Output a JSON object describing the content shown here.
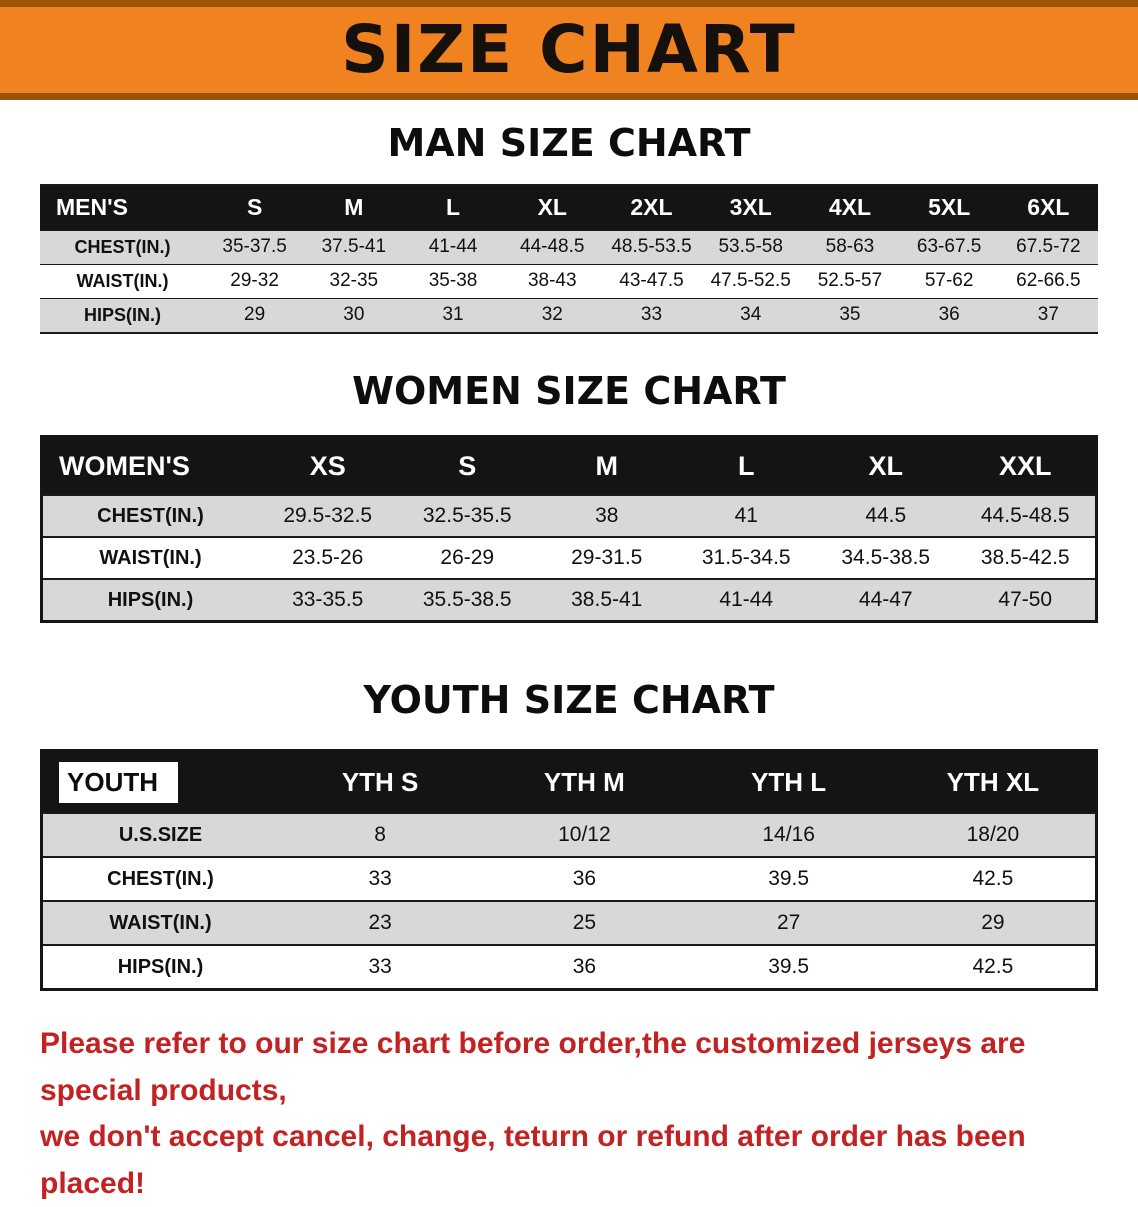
{
  "banner": {
    "title": "SIZE CHART",
    "bg_color": "#f0831f",
    "border_color": "#9c5308"
  },
  "sections": [
    {
      "heading": "MAN SIZE CHART",
      "table": {
        "label": "MEN'S",
        "columns": [
          "S",
          "M",
          "L",
          "XL",
          "2XL",
          "3XL",
          "4XL",
          "5XL",
          "6XL"
        ],
        "rows": [
          {
            "label": "CHEST(IN.)",
            "values": [
              "35-37.5",
              "37.5-41",
              "41-44",
              "44-48.5",
              "48.5-53.5",
              "53.5-58",
              "58-63",
              "63-67.5",
              "67.5-72"
            ]
          },
          {
            "label": "WAIST(IN.)",
            "values": [
              "29-32",
              "32-35",
              "35-38",
              "38-43",
              "43-47.5",
              "47.5-52.5",
              "52.5-57",
              "57-62",
              "62-66.5"
            ]
          },
          {
            "label": "HIPS(IN.)",
            "values": [
              "29",
              "30",
              "31",
              "32",
              "33",
              "34",
              "35",
              "36",
              "37"
            ]
          }
        ]
      }
    },
    {
      "heading": "WOMEN SIZE CHART",
      "table": {
        "label": "WOMEN'S",
        "columns": [
          "XS",
          "S",
          "M",
          "L",
          "XL",
          "XXL"
        ],
        "rows": [
          {
            "label": "CHEST(IN.)",
            "values": [
              "29.5-32.5",
              "32.5-35.5",
              "38",
              "41",
              "44.5",
              "44.5-48.5"
            ]
          },
          {
            "label": "WAIST(IN.)",
            "values": [
              "23.5-26",
              "26-29",
              "29-31.5",
              "31.5-34.5",
              "34.5-38.5",
              "38.5-42.5"
            ]
          },
          {
            "label": "HIPS(IN.)",
            "values": [
              "33-35.5",
              "35.5-38.5",
              "38.5-41",
              "41-44",
              "44-47",
              "47-50"
            ]
          }
        ]
      }
    },
    {
      "heading": "YOUTH SIZE CHART",
      "table": {
        "label": "YOUTH",
        "columns": [
          "YTH S",
          "YTH M",
          "YTH L",
          "YTH XL"
        ],
        "rows": [
          {
            "label": "U.S.SIZE",
            "values": [
              "8",
              "10/12",
              "14/16",
              "18/20"
            ]
          },
          {
            "label": "CHEST(IN.)",
            "values": [
              "33",
              "36",
              "39.5",
              "42.5"
            ]
          },
          {
            "label": "WAIST(IN.)",
            "values": [
              "23",
              "25",
              "27",
              "29"
            ]
          },
          {
            "label": "HIPS(IN.)",
            "values": [
              "33",
              "36",
              "39.5",
              "42.5"
            ]
          }
        ]
      }
    }
  ],
  "footer": {
    "line1": "Please refer to our size chart before order,the customized jerseys are special products,",
    "line2": "we don't accept cancel, change, teturn or refund after order has been placed!",
    "text_color": "#c32222"
  }
}
